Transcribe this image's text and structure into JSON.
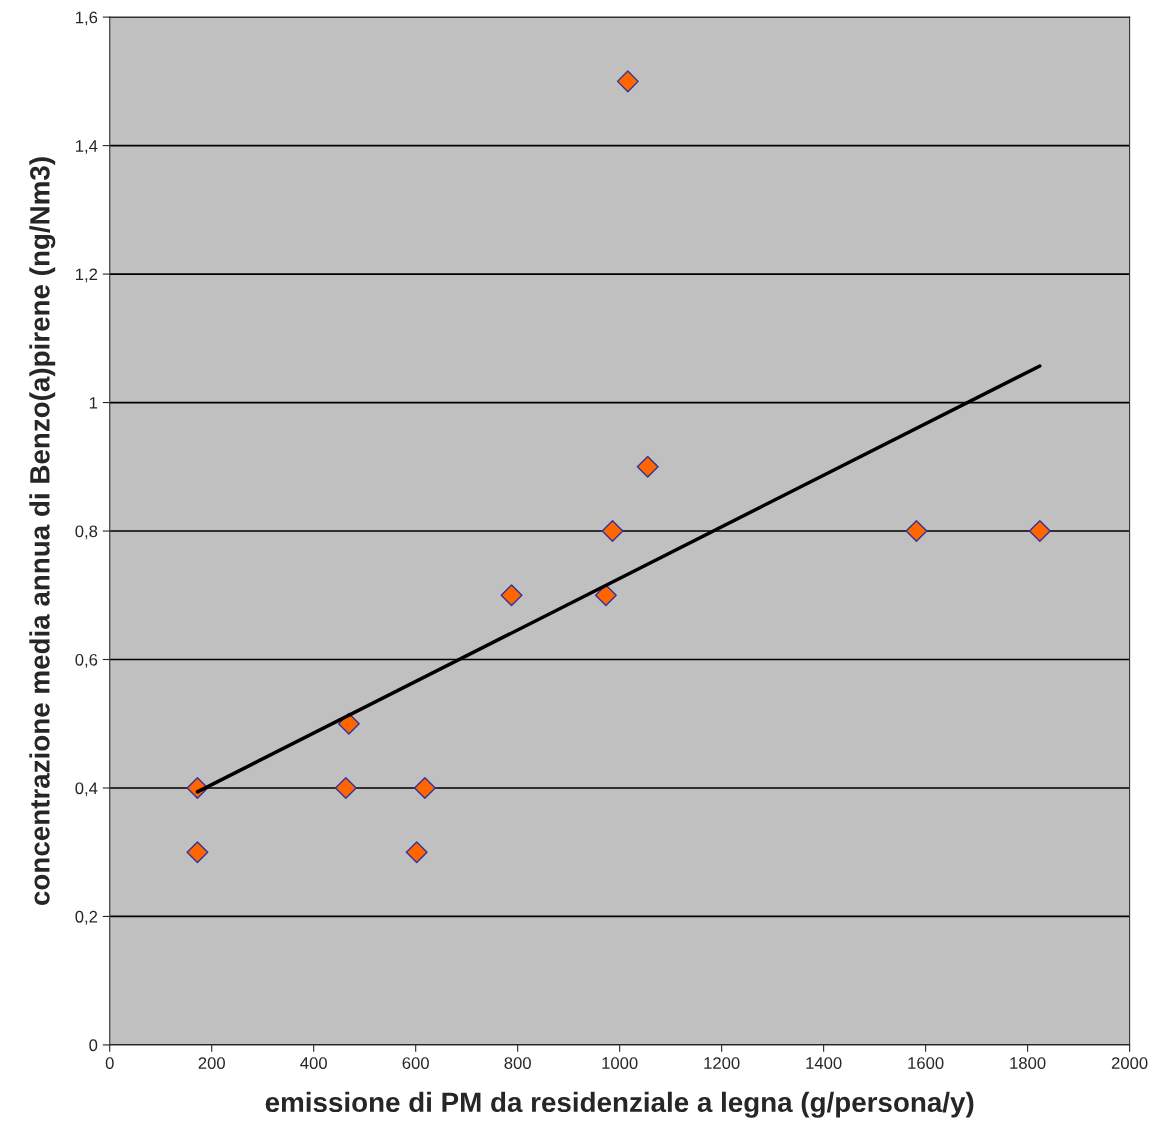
{
  "chart_data": {
    "type": "scatter",
    "xlabel": "emissione di PM da residenziale a legna (g/persona/y)",
    "ylabel": "concentrazione media annua di Benzo(a)pirene (ng/Nm3)",
    "series": [
      {
        "color": "#ff6600",
        "marker": "diamond",
        "x": [
          172,
          172,
          463,
          469,
          602,
          618,
          788,
          973,
          986,
          1016,
          1055,
          1582,
          1824
        ],
        "values": [
          0.4,
          0.3,
          0.4,
          0.5,
          0.3,
          0.4,
          0.7,
          0.7,
          0.8,
          1.5,
          0.9,
          0.8,
          0.8
        ]
      },
      {
        "type": "line",
        "color": "#000000",
        "marker": "none",
        "line_style": "solid",
        "x": [
          172,
          1824
        ],
        "values": [
          0.394,
          1.057
        ]
      }
    ],
    "xlim": [
      0,
      2000
    ],
    "xticks": [
      0,
      200,
      400,
      600,
      800,
      1000,
      1200,
      1400,
      1600,
      1800,
      2000
    ],
    "ylim": [
      0,
      1.6
    ],
    "yticks": [
      {
        "value": 0,
        "label": "0"
      },
      {
        "value": 0.2,
        "label": "0,2"
      },
      {
        "value": 0.4,
        "label": "0,4"
      },
      {
        "value": 0.6,
        "label": "0,6"
      },
      {
        "value": 0.8,
        "label": "0,8"
      },
      {
        "value": 1,
        "label": "1"
      },
      {
        "value": 1.2,
        "label": "1,2"
      },
      {
        "value": 1.4,
        "label": "1,4"
      },
      {
        "value": 1.6,
        "label": "1,6"
      }
    ],
    "grid": "y",
    "legend": false
  }
}
